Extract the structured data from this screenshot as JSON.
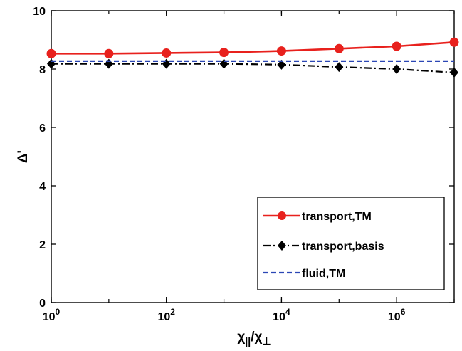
{
  "chart_data": {
    "type": "line",
    "xscale": "log",
    "xlabel": "χ||/χ⊥",
    "ylabel": "Δ'",
    "xlim": [
      1,
      10000000
    ],
    "ylim": [
      0,
      10
    ],
    "x_ticks": [
      {
        "value": 1,
        "base": "10",
        "exp": "0"
      },
      {
        "value": 100,
        "base": "10",
        "exp": "2"
      },
      {
        "value": 10000,
        "base": "10",
        "exp": "4"
      },
      {
        "value": 1000000,
        "base": "10",
        "exp": "6"
      }
    ],
    "y_ticks": [
      0,
      2,
      4,
      6,
      8,
      10
    ],
    "grid": false,
    "legend_position": "bottom-right",
    "x": [
      1,
      10,
      100,
      1000,
      10000,
      100000,
      1000000,
      10000000
    ],
    "series": [
      {
        "name": "transport,TM",
        "color": "#e8211d",
        "line": "solid",
        "marker": "circle",
        "values": [
          8.53,
          8.53,
          8.55,
          8.57,
          8.62,
          8.7,
          8.78,
          8.92
        ]
      },
      {
        "name": "transport,basis",
        "color": "#000000",
        "line": "dashdot",
        "marker": "diamond",
        "values": [
          8.18,
          8.18,
          8.18,
          8.18,
          8.15,
          8.07,
          8.0,
          7.88
        ]
      },
      {
        "name": "fluid,TM",
        "color": "#2b47b5",
        "line": "dashed",
        "marker": "none",
        "values": [
          8.27,
          8.27,
          8.27,
          8.27,
          8.27,
          8.27,
          8.27,
          8.27
        ]
      }
    ]
  }
}
